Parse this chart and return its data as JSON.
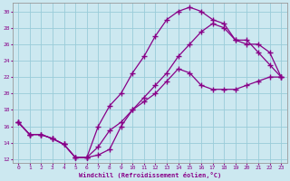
{
  "xlabel": "Windchill (Refroidissement éolien,°C)",
  "background_color": "#cce8f0",
  "grid_color": "#99ccd9",
  "line_color": "#880088",
  "xlim": [
    -0.5,
    23.5
  ],
  "ylim": [
    11.5,
    31.0
  ],
  "yticks": [
    12,
    14,
    16,
    18,
    20,
    22,
    24,
    26,
    28,
    30
  ],
  "xticks": [
    0,
    1,
    2,
    3,
    4,
    5,
    6,
    7,
    8,
    9,
    10,
    11,
    12,
    13,
    14,
    15,
    16,
    17,
    18,
    19,
    20,
    21,
    22,
    23
  ],
  "line1_x": [
    0,
    1,
    2,
    3,
    4,
    5,
    6,
    7,
    8,
    9,
    10,
    11,
    12,
    13,
    14,
    15,
    16,
    17,
    18,
    19,
    20,
    21,
    22,
    23
  ],
  "line1_y": [
    16.5,
    15.0,
    15.0,
    14.5,
    13.8,
    12.2,
    12.2,
    12.5,
    13.2,
    16.0,
    18.0,
    19.0,
    20.0,
    21.5,
    23.0,
    22.5,
    21.0,
    20.5,
    20.5,
    20.5,
    21.0,
    21.5,
    22.0,
    22.0
  ],
  "line2_x": [
    0,
    1,
    2,
    3,
    4,
    5,
    6,
    7,
    8,
    9,
    10,
    11,
    12,
    13,
    14,
    15,
    16,
    17,
    18,
    19,
    20,
    21,
    22,
    23
  ],
  "line2_y": [
    16.5,
    15.0,
    15.0,
    14.5,
    13.8,
    12.2,
    12.2,
    16.0,
    18.5,
    20.0,
    22.5,
    24.5,
    27.0,
    29.0,
    30.0,
    30.5,
    30.0,
    29.0,
    28.5,
    26.5,
    26.5,
    25.0,
    23.5,
    22.0
  ],
  "line3_x": [
    0,
    1,
    2,
    3,
    4,
    5,
    6,
    7,
    8,
    9,
    10,
    11,
    12,
    13,
    14,
    15,
    16,
    17,
    18,
    19,
    20,
    21,
    22,
    23
  ],
  "line3_y": [
    16.5,
    15.0,
    15.0,
    14.5,
    13.8,
    12.2,
    12.2,
    13.5,
    15.5,
    16.5,
    18.0,
    19.5,
    21.0,
    22.5,
    24.5,
    26.0,
    27.5,
    28.5,
    28.0,
    26.5,
    26.0,
    26.0,
    25.0,
    22.0
  ]
}
